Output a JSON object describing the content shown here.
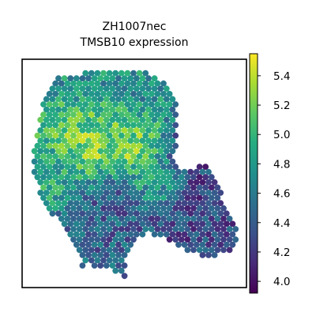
{
  "title_line1": "ZH1007nec",
  "title_line2": "TMSB10 expression",
  "chart_data": {
    "type": "scatter",
    "title": "ZH1007nec\nTMSB10 expression",
    "xlabel": "",
    "ylabel": "",
    "grid": false,
    "colormap": "viridis",
    "colorbar": {
      "location": "right",
      "range": [
        3.92,
        5.55
      ],
      "ticks": [
        4.0,
        4.2,
        4.4,
        4.6,
        4.8,
        5.0,
        5.2,
        5.4
      ],
      "tick_labels": [
        "4.0",
        "4.2",
        "4.4",
        "4.6",
        "4.8",
        "5.0",
        "5.2",
        "5.4"
      ]
    },
    "description_note": "",
    "spot_pattern": "hexagonal spatial transcriptomics spots",
    "regions": [
      {
        "name": "upper-left lobe",
        "level": 4.85
      },
      {
        "name": "bright core left",
        "level": 5.35
      },
      {
        "name": "bright core center",
        "level": 5.3
      },
      {
        "name": "right lobe",
        "level": 4.3
      },
      {
        "name": "bottom extension",
        "level": 4.45
      }
    ]
  }
}
